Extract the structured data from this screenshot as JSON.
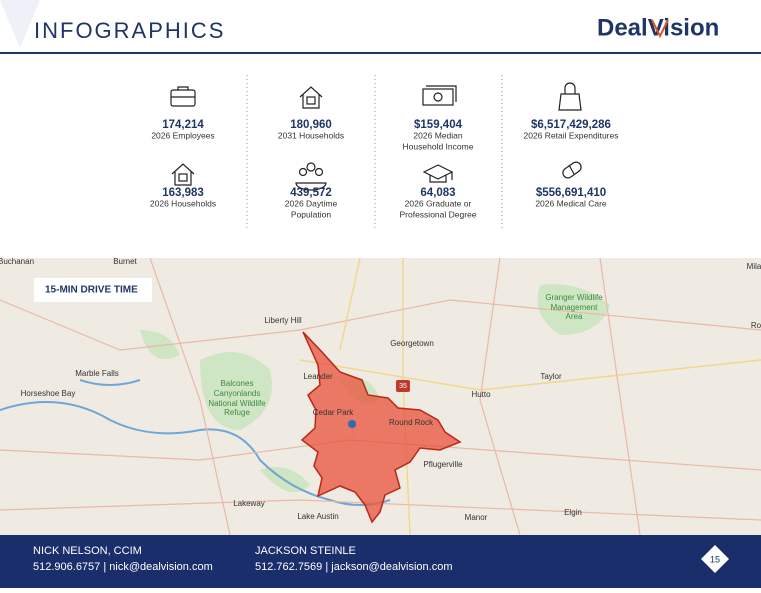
{
  "header": {
    "title": "INFOGRAPHICS",
    "logo": "DealVision"
  },
  "stats": [
    {
      "value": "174,214",
      "label": [
        "2026 Employees"
      ]
    },
    {
      "value": "180,960",
      "label": [
        "2031 Households"
      ]
    },
    {
      "value": "$159,404",
      "label": [
        "2026 Median",
        "Household Income"
      ]
    },
    {
      "value": "$6,517,429,286",
      "label": [
        "2026 Retail Expenditures"
      ]
    },
    {
      "value": "163,983",
      "label": [
        "2026 Households"
      ]
    },
    {
      "value": "439,572",
      "label": [
        "2026 Daytime",
        "Population"
      ]
    },
    {
      "value": "64,083",
      "label": [
        "2026 Graduate or",
        "Professional Degree"
      ]
    },
    {
      "value": "$556,691,410",
      "label": [
        "2026 Medical Care"
      ]
    }
  ],
  "map": {
    "badge": "15-MIN DRIVE TIME",
    "highway": "35",
    "places": [
      "Buchanan",
      "Burnet",
      "Liberty Hill",
      "Georgetown",
      "Marble Falls",
      "Horseshoe Bay",
      "Leander",
      "Cedar Park",
      "Round Rock",
      "Pflugerville",
      "Hutto",
      "Taylor",
      "Lakeway",
      "Manor",
      "Elgin",
      "Lake Austin",
      "Mila",
      "Ro"
    ],
    "parks": [
      [
        "Balcones",
        "Canyonlands",
        "National Wildlife",
        "Refuge"
      ],
      [
        "Granger Wildlife",
        "Management",
        "Area"
      ]
    ]
  },
  "footer": {
    "contacts": [
      {
        "name": "NICK NELSON, CCIM",
        "details": "512.906.6757 | nick@dealvision.com"
      },
      {
        "name": "JACKSON STEINLE",
        "details": "512.762.7569 | jackson@dealvision.com"
      }
    ],
    "page": "15"
  }
}
